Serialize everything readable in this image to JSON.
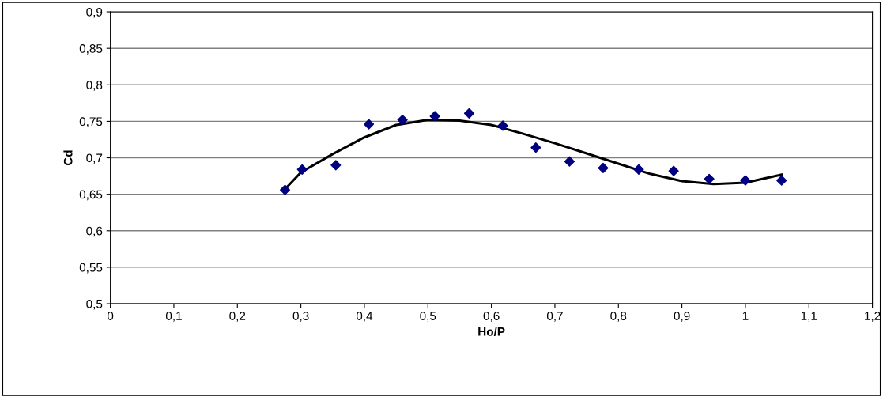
{
  "chart_data": {
    "type": "scatter",
    "xlabel": "Ho/P",
    "ylabel": "Cd",
    "series": [
      {
        "color": "#000080",
        "marker": "diamond",
        "x": [
          0.275,
          0.302,
          0.355,
          0.407,
          0.46,
          0.511,
          0.565,
          0.618,
          0.67,
          0.723,
          0.776,
          0.832,
          0.887,
          0.943,
          1.0,
          1.057
        ],
        "values": [
          0.656,
          0.684,
          0.69,
          0.746,
          0.752,
          0.757,
          0.761,
          0.744,
          0.714,
          0.695,
          0.686,
          0.684,
          0.682,
          0.671,
          0.669,
          0.669
        ]
      },
      {
        "type": "line",
        "color": "#000000",
        "marker": "none",
        "line_style": "solid",
        "x": [
          0.275,
          0.3,
          0.35,
          0.4,
          0.45,
          0.5,
          0.55,
          0.6,
          0.65,
          0.7,
          0.75,
          0.8,
          0.85,
          0.9,
          0.95,
          1.0,
          1.057
        ],
        "values": [
          0.657,
          0.68,
          0.705,
          0.728,
          0.745,
          0.752,
          0.751,
          0.745,
          0.733,
          0.72,
          0.706,
          0.692,
          0.678,
          0.668,
          0.664,
          0.666,
          0.677
        ]
      }
    ],
    "xlim": [
      0,
      1.2
    ],
    "xticks": [
      0,
      {
        "value": 0.1,
        "label": "0,1"
      },
      {
        "value": 0.2,
        "label": "0,2"
      },
      {
        "value": 0.3,
        "label": "0,3"
      },
      {
        "value": 0.4,
        "label": "0,4"
      },
      {
        "value": 0.5,
        "label": "0,5"
      },
      {
        "value": 0.6,
        "label": "0,6"
      },
      {
        "value": 0.7,
        "label": "0,7"
      },
      {
        "value": 0.8,
        "label": "0,8"
      },
      {
        "value": 0.9,
        "label": "0,9"
      },
      1,
      {
        "value": 1.1,
        "label": "1,1"
      },
      {
        "value": 1.2,
        "label": "1,2"
      }
    ],
    "ylim": [
      0.5,
      0.9
    ],
    "yticks": [
      {
        "value": 0.5,
        "label": "0,5"
      },
      {
        "value": 0.55,
        "label": "0,55"
      },
      {
        "value": 0.6,
        "label": "0,6"
      },
      {
        "value": 0.65,
        "label": "0,65"
      },
      {
        "value": 0.7,
        "label": "0,7"
      },
      {
        "value": 0.75,
        "label": "0,75"
      },
      {
        "value": 0.8,
        "label": "0,8"
      },
      {
        "value": 0.85,
        "label": "0,85"
      },
      {
        "value": 0.9,
        "label": "0,9"
      }
    ],
    "grid": "y"
  }
}
